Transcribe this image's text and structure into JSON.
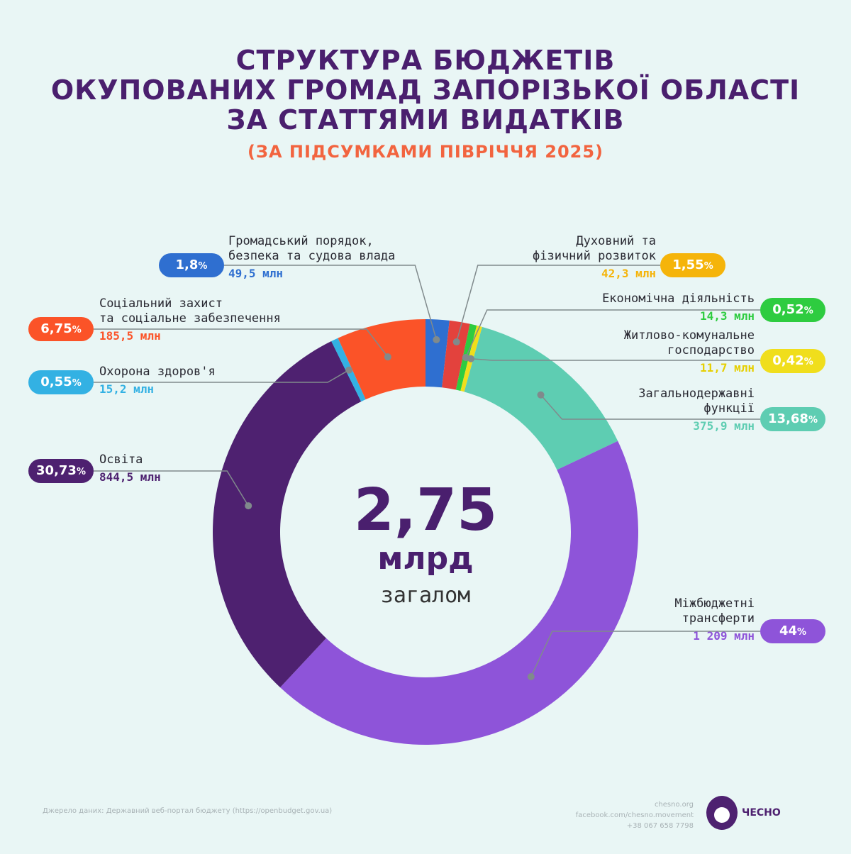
{
  "chart_data": {
    "type": "pie",
    "title": [
      "СТРУКТУРА БЮДЖЕТІВ",
      "ОКУПОВАНИХ ГРОМАД ЗАПОРІЗЬКОЇ ОБЛАСТІ",
      "ЗА СТАТТЯМИ ВИДАТКІВ"
    ],
    "subtitle": "(ЗА ПІДСУМКАМИ ПІВРІЧЧЯ 2025)",
    "center": {
      "value": "2,75",
      "unit": "млрд",
      "caption": "загалом"
    },
    "slices": [
      {
        "label": [
          "Громадський порядок,",
          "безпека та судова влада"
        ],
        "percent": 1.8,
        "percent_label": "1,8",
        "amount": "49,5 млн",
        "color": "#2f6fd0",
        "badge_color": "#2f6fd0"
      },
      {
        "label": [
          "Духовний та",
          "фізичний розвиток"
        ],
        "percent": 1.55,
        "percent_label": "1,55",
        "amount": "42,3 млн",
        "color": "#e3423d",
        "badge_color": "#f5b40a"
      },
      {
        "label": [
          "Економічна діяльність"
        ],
        "percent": 0.52,
        "percent_label": "0,52",
        "amount": "14,3 млн",
        "color": "#2ecc40",
        "badge_color": "#2ecc40"
      },
      {
        "label": [
          "Житлово-комунальне",
          "господарство"
        ],
        "percent": 0.42,
        "percent_label": "0,42",
        "amount": "11,7 млн",
        "color": "#f0de1c",
        "badge_color": "#f0de1c"
      },
      {
        "label": [
          "Загальнодержавні",
          "функції"
        ],
        "percent": 13.68,
        "percent_label": "13,68",
        "amount": "375,9 млн",
        "color": "#5ecdb2",
        "badge_color": "#5ecdb2"
      },
      {
        "label": [
          "Міжбюджетні",
          "трансферти"
        ],
        "percent": 44,
        "percent_label": "44",
        "amount": "1 209 млн",
        "color": "#8e54d9",
        "badge_color": "#8e54d9"
      },
      {
        "label": [
          "Освіта"
        ],
        "percent": 30.73,
        "percent_label": "30,73",
        "amount": "844,5 млн",
        "color": "#4e2170",
        "badge_color": "#4e2170"
      },
      {
        "label": [
          "Охорона здоров'я"
        ],
        "percent": 0.55,
        "percent_label": "0,55",
        "amount": "15,2 млн",
        "color": "#33b1e3",
        "badge_color": "#33b1e3"
      },
      {
        "label": [
          "Соціальний захист",
          "та соціальне забезпечення"
        ],
        "percent": 6.75,
        "percent_label": "6,75",
        "amount": "185,5 млн",
        "color": "#fb5328",
        "badge_color": "#fb5328"
      }
    ],
    "percent_sign": "%"
  },
  "footer": {
    "source": "Джерело даних: Державний веб-портал бюджету (https://openbudget.gov.ua)",
    "site": "chesno.org",
    "facebook": "facebook.com/chesno.movement",
    "phone": "+38 067 658 7798",
    "logo_text": "ЧЕСНО"
  }
}
